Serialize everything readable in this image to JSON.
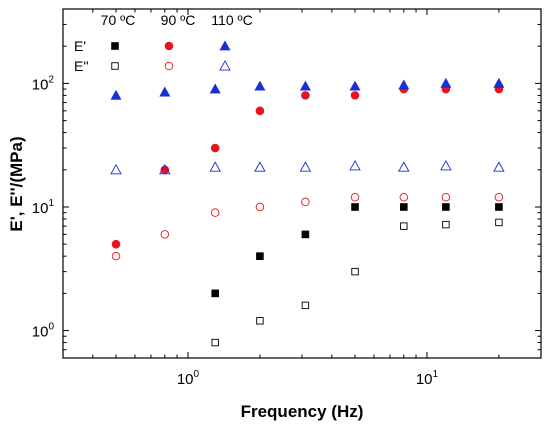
{
  "chart_data": {
    "type": "scatter",
    "xlabel": "Frequency (Hz)",
    "ylabel": "E', E''/(MPa)",
    "xscale": "log",
    "yscale": "log",
    "xlim": [
      0.3,
      30
    ],
    "ylim": [
      0.6,
      400
    ],
    "x_ticks": [
      {
        "value": 1,
        "base": "10",
        "exp": "0"
      },
      {
        "value": 10,
        "base": "10",
        "exp": "1"
      }
    ],
    "y_ticks": [
      {
        "value": 1,
        "base": "10",
        "exp": "0"
      },
      {
        "value": 10,
        "base": "10",
        "exp": "1"
      },
      {
        "value": 100,
        "base": "10",
        "exp": "2"
      }
    ],
    "legend": {
      "placement": "top-left",
      "temperatures": [
        "70 ºC",
        "90 ºC",
        "110 ºC"
      ],
      "rows": [
        "E'",
        "E''"
      ]
    },
    "series": [
      {
        "name": "E' 70 ºC",
        "modulus": "E'",
        "temperature": "70 ºC",
        "color": "#000000",
        "marker": "square",
        "filled": true,
        "x": [
          1.3,
          2.0,
          3.1,
          5.0,
          8.0,
          12.0,
          20.0
        ],
        "y": [
          2.0,
          4.0,
          6.0,
          10.0,
          10.0,
          10.0,
          10.0
        ]
      },
      {
        "name": "E'' 70 ºC",
        "modulus": "E''",
        "temperature": "70 ºC",
        "color": "#000000",
        "marker": "square",
        "filled": false,
        "x": [
          1.3,
          2.0,
          3.1,
          5.0,
          8.0,
          12.0,
          20.0
        ],
        "y": [
          0.8,
          1.2,
          1.6,
          3.0,
          7.0,
          7.2,
          7.5
        ]
      },
      {
        "name": "E' 90 ºC",
        "modulus": "E'",
        "temperature": "90 ºC",
        "color": "#e8141c",
        "marker": "circle",
        "filled": true,
        "x": [
          0.5,
          0.8,
          1.3,
          2.0,
          3.1,
          5.0,
          8.0,
          12.0,
          20.0
        ],
        "y": [
          5.0,
          20.0,
          30.0,
          60.0,
          80.0,
          80.0,
          90.0,
          90.0,
          90.0
        ]
      },
      {
        "name": "E'' 90 ºC",
        "modulus": "E''",
        "temperature": "90 ºC",
        "color": "#e8141c",
        "marker": "circle",
        "filled": false,
        "x": [
          0.5,
          0.8,
          1.3,
          2.0,
          3.1,
          5.0,
          8.0,
          12.0,
          20.0
        ],
        "y": [
          4.0,
          6.0,
          9.0,
          10.0,
          11.0,
          12.0,
          12.0,
          12.0,
          12.0
        ]
      },
      {
        "name": "E' 110 ºC",
        "modulus": "E'",
        "temperature": "110 ºC",
        "color": "#1a2ed8",
        "marker": "triangle",
        "filled": true,
        "x": [
          0.5,
          0.8,
          1.3,
          2.0,
          3.1,
          5.0,
          8.0,
          12.0,
          20.0
        ],
        "y": [
          80.0,
          85.0,
          90.0,
          95.0,
          95.0,
          95.0,
          97.0,
          100.0,
          100.0
        ]
      },
      {
        "name": "E'' 110 ºC",
        "modulus": "E''",
        "temperature": "110 ºC",
        "color": "#1a2ed8",
        "marker": "triangle",
        "filled": false,
        "x": [
          0.5,
          0.8,
          1.3,
          2.0,
          3.1,
          5.0,
          8.0,
          12.0,
          20.0
        ],
        "y": [
          20.0,
          20.0,
          21.0,
          21.0,
          21.0,
          21.5,
          21.0,
          21.5,
          21.0
        ]
      }
    ]
  }
}
